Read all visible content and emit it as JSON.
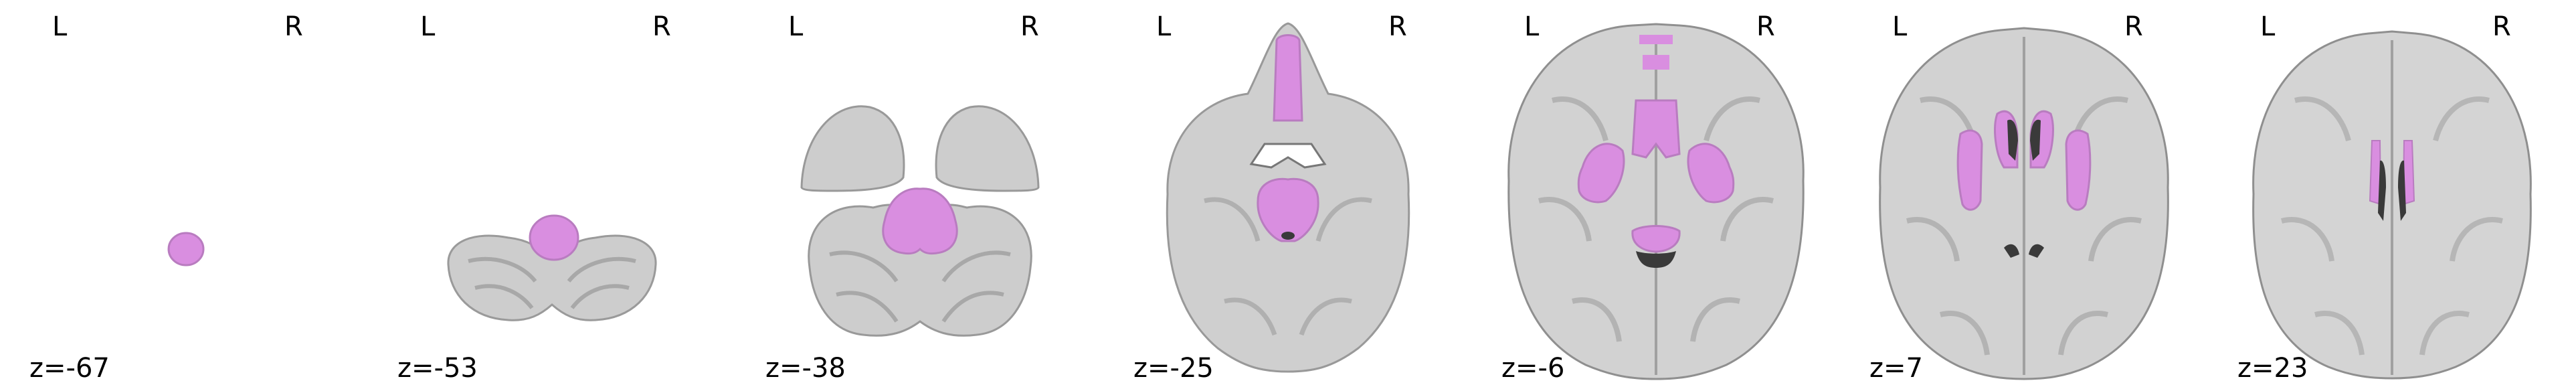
{
  "colors": {
    "background": "#ffffff",
    "overlay": "#d98ee0",
    "brain_gray": "#cfcfcf",
    "ventricle": "#3a3a3a"
  },
  "slices": [
    {
      "z_label": "z=-67",
      "left_label": "L",
      "right_label": "R"
    },
    {
      "z_label": "z=-53",
      "left_label": "L",
      "right_label": "R"
    },
    {
      "z_label": "z=-38",
      "left_label": "L",
      "right_label": "R"
    },
    {
      "z_label": "z=-25",
      "left_label": "L",
      "right_label": "R"
    },
    {
      "z_label": "z=-6",
      "left_label": "L",
      "right_label": "R"
    },
    {
      "z_label": "z=7",
      "left_label": "L",
      "right_label": "R"
    },
    {
      "z_label": "z=23",
      "left_label": "L",
      "right_label": "R"
    }
  ]
}
